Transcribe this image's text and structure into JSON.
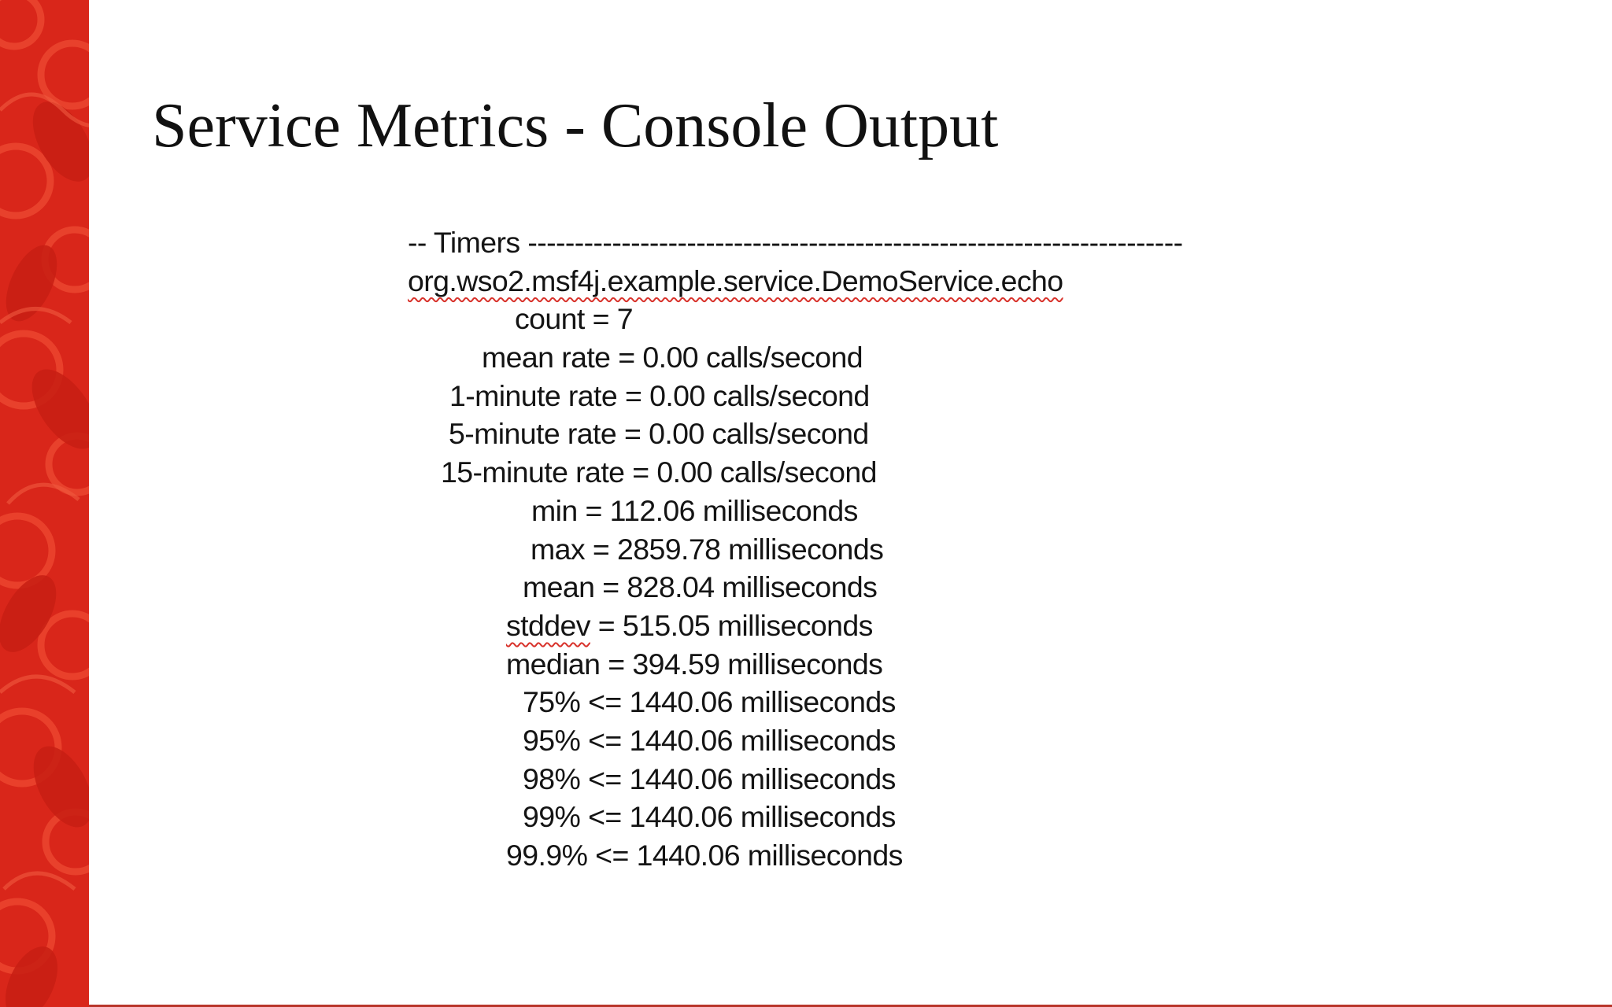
{
  "slide": {
    "title": "Service Metrics - Console Output"
  },
  "console": {
    "header_prefix": "-- Timers ",
    "header_dashes": "----------------------------------------------------------------------",
    "timer_name": "org.wso2.msf4j.example.service.DemoService.echo",
    "metrics": [
      {
        "label": "count",
        "operator": "=",
        "value": "7"
      },
      {
        "label": "mean rate",
        "operator": "=",
        "value": "0.00 calls/second"
      },
      {
        "label": "1-minute rate",
        "operator": "=",
        "value": "0.00 calls/second"
      },
      {
        "label": "5-minute rate",
        "operator": "=",
        "value": "0.00 calls/second"
      },
      {
        "label": "15-minute rate",
        "operator": "=",
        "value": "0.00 calls/second"
      },
      {
        "label": "min",
        "operator": "=",
        "value": "112.06 milliseconds"
      },
      {
        "label": "max",
        "operator": "=",
        "value": "2859.78 milliseconds"
      },
      {
        "label": "mean",
        "operator": "=",
        "value": "828.04 milliseconds"
      },
      {
        "label": "stddev",
        "operator": "=",
        "value": "515.05 milliseconds"
      },
      {
        "label": "median",
        "operator": "=",
        "value": "394.59 milliseconds"
      },
      {
        "label": "75%",
        "operator": "<=",
        "value": "1440.06 milliseconds"
      },
      {
        "label": "95%",
        "operator": "<=",
        "value": "1440.06 milliseconds"
      },
      {
        "label": "98%",
        "operator": "<=",
        "value": "1440.06 milliseconds"
      },
      {
        "label": "99%",
        "operator": "<=",
        "value": "1440.06 milliseconds"
      },
      {
        "label": "99.9%",
        "operator": "<=",
        "value": "1440.06 milliseconds"
      }
    ]
  },
  "colors": {
    "band_red": "#d9261a",
    "band_pattern": "#ee4a32",
    "text": "#141414",
    "spellcheck_underline": "#d8322b"
  }
}
